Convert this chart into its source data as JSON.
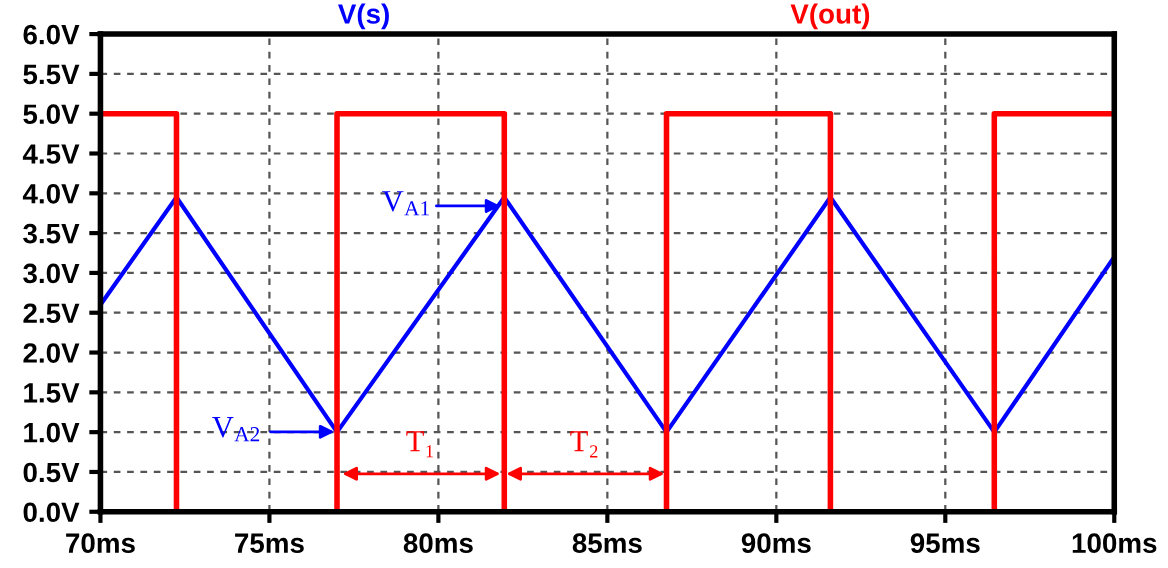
{
  "chart_data": {
    "type": "line",
    "series": [
      {
        "name": "V(s)",
        "color": "#0000ff",
        "x": [
          70,
          72.25,
          77.0,
          81.95,
          86.75,
          91.6,
          96.45,
          100
        ],
        "values": [
          2.6,
          3.95,
          1.0,
          3.95,
          1.0,
          3.95,
          1.0,
          3.2
        ]
      },
      {
        "name": "V(out)",
        "color": "#ff0000",
        "type": "step",
        "x": [
          70,
          72.25,
          77.0,
          81.95,
          86.75,
          91.6,
          96.45,
          100
        ],
        "values": [
          5,
          0,
          5,
          0,
          5,
          0,
          5,
          5
        ]
      }
    ],
    "xlim": [
      70,
      100
    ],
    "xticks": [
      {
        "value": 70,
        "label": "70ms"
      },
      {
        "value": 75,
        "label": "75ms"
      },
      {
        "value": 80,
        "label": "80ms"
      },
      {
        "value": 85,
        "label": "85ms"
      },
      {
        "value": 90,
        "label": "90ms"
      },
      {
        "value": 95,
        "label": "95ms"
      },
      {
        "value": 100,
        "label": "100ms"
      }
    ],
    "ylim": [
      0,
      6
    ],
    "yticks": [
      {
        "value": 0,
        "label": "0.0V"
      },
      {
        "value": 0.5,
        "label": "0.5V"
      },
      {
        "value": 1,
        "label": "1.0V"
      },
      {
        "value": 1.5,
        "label": "1.5V"
      },
      {
        "value": 2,
        "label": "2.0V"
      },
      {
        "value": 2.5,
        "label": "2.5V"
      },
      {
        "value": 3,
        "label": "3.0V"
      },
      {
        "value": 3.5,
        "label": "3.5V"
      },
      {
        "value": 4,
        "label": "4.0V"
      },
      {
        "value": 4.5,
        "label": "4.5V"
      },
      {
        "value": 5,
        "label": "5.0V"
      },
      {
        "value": 5.5,
        "label": "5.5V"
      },
      {
        "value": 6,
        "label": "6.0V"
      }
    ],
    "annotations": [
      "V$_{A1}$",
      "V$_{A2}$",
      "T₁",
      "T₂"
    ],
    "grid": true,
    "legend": "top",
    "line_style": "solid"
  }
}
